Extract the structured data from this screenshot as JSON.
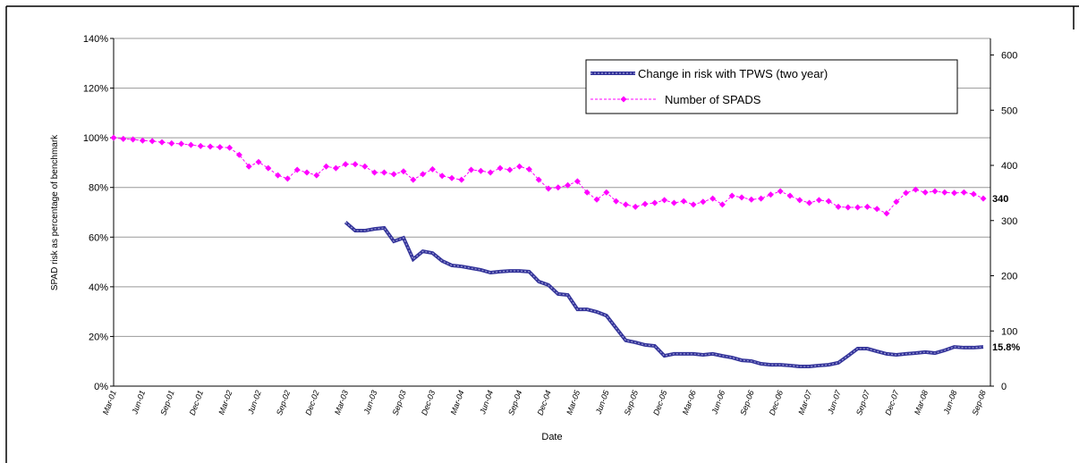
{
  "chart_data": {
    "type": "line",
    "x_label": "Date",
    "y_label": "SPAD risk as percentage of benchmark",
    "categories": [
      "Mar-01",
      null,
      null,
      "Jun-01",
      null,
      null,
      "Sep-01",
      null,
      null,
      "Dec-01",
      null,
      null,
      "Mar-02",
      null,
      null,
      "Jun-02",
      null,
      null,
      "Sep-02",
      null,
      null,
      "Dec-02",
      null,
      null,
      "Mar-03",
      null,
      null,
      "Jun-03",
      null,
      null,
      "Sep-03",
      null,
      null,
      "Dec-03",
      null,
      null,
      "Mar-04",
      null,
      null,
      "Jun-04",
      null,
      null,
      "Sep-04",
      null,
      null,
      "Dec-04",
      null,
      null,
      "Mar-05",
      null,
      null,
      "Jun-05",
      null,
      null,
      "Sep-05",
      null,
      null,
      "Dec-05",
      null,
      null,
      "Mar-06",
      null,
      null,
      "Jun-06",
      null,
      null,
      "Sep-06",
      null,
      null,
      "Dec-06",
      null,
      null,
      "Mar-07",
      null,
      null,
      "Jun-07",
      null,
      null,
      "Sep-07",
      null,
      null,
      "Dec-07",
      null,
      null,
      "Mar-08",
      null,
      null,
      "Jun-08",
      null,
      null,
      "Sep-08"
    ],
    "series": [
      {
        "name": "Change in risk with TPWS (two year)",
        "color": "#333399",
        "axis": "y",
        "values": [
          null,
          null,
          null,
          null,
          null,
          null,
          null,
          null,
          null,
          null,
          null,
          null,
          null,
          null,
          null,
          null,
          null,
          null,
          null,
          null,
          null,
          null,
          null,
          null,
          66,
          62.6,
          62.6,
          63.3,
          63.7,
          58.3,
          59.7,
          51.1,
          54.3,
          53.6,
          50.4,
          48.6,
          48.2,
          47.5,
          46.8,
          45.7,
          46.1,
          46.4,
          46.4,
          46.1,
          42.1,
          40.7,
          37.1,
          36.7,
          30.9,
          30.9,
          29.9,
          28.4,
          23.4,
          18.4,
          17.6,
          16.6,
          16.2,
          12.2,
          13,
          13,
          13,
          12.6,
          13,
          12.2,
          11.5,
          10.4,
          10.1,
          9,
          8.6,
          8.6,
          8.3,
          7.9,
          7.9,
          8.3,
          8.6,
          9.4,
          12.2,
          15.1,
          15.1,
          14,
          13,
          12.6,
          13,
          13.3,
          13.7,
          13.3,
          14.4,
          15.8,
          15.5,
          15.5,
          15.8
        ],
        "value_labels": [
          null,
          null,
          null,
          null,
          null,
          null,
          null,
          null,
          null,
          null,
          null,
          null,
          null,
          null,
          null,
          null,
          null,
          null,
          null,
          null,
          null,
          null,
          null,
          null,
          null,
          null,
          null,
          null,
          null,
          null,
          null,
          null,
          null,
          null,
          null,
          null,
          null,
          null,
          null,
          null,
          null,
          null,
          null,
          null,
          null,
          null,
          null,
          null,
          null,
          null,
          null,
          null,
          null,
          null,
          null,
          null,
          null,
          null,
          null,
          null,
          null,
          null,
          null,
          null,
          null,
          null,
          null,
          null,
          null,
          null,
          null,
          null,
          null,
          null,
          null,
          null,
          null,
          null,
          null,
          null,
          null,
          null,
          null,
          null,
          null,
          null,
          null,
          null,
          null,
          null,
          "15.8%"
        ]
      },
      {
        "name": "Number of SPADS",
        "color": "#ff00ff",
        "axis": "y2",
        "values": [
          450,
          448,
          447,
          445,
          444,
          442,
          440,
          439,
          437,
          435,
          434,
          433,
          432,
          419,
          398,
          406,
          395,
          382,
          376,
          392,
          387,
          382,
          398,
          395,
          402,
          402,
          398,
          387,
          387,
          384,
          389,
          374,
          384,
          393,
          381,
          377,
          374,
          392,
          390,
          387,
          395,
          392,
          398,
          393,
          374,
          358,
          360,
          364,
          371,
          351,
          338,
          351,
          335,
          329,
          325,
          330,
          332,
          337,
          332,
          335,
          329,
          334,
          340,
          329,
          345,
          342,
          338,
          340,
          347,
          353,
          345,
          337,
          332,
          337,
          335,
          325,
          324,
          324,
          325,
          321,
          313,
          334,
          350,
          356,
          351,
          353,
          351,
          350,
          351,
          348,
          340
        ],
        "value_labels": [
          null,
          null,
          null,
          null,
          null,
          null,
          null,
          null,
          null,
          null,
          null,
          null,
          null,
          null,
          null,
          null,
          null,
          null,
          null,
          null,
          null,
          null,
          null,
          null,
          null,
          null,
          null,
          null,
          null,
          null,
          null,
          null,
          null,
          null,
          null,
          null,
          null,
          null,
          null,
          null,
          null,
          null,
          null,
          null,
          null,
          null,
          null,
          null,
          null,
          null,
          null,
          null,
          null,
          null,
          null,
          null,
          null,
          null,
          null,
          null,
          null,
          null,
          null,
          null,
          null,
          null,
          null,
          null,
          null,
          null,
          null,
          null,
          null,
          null,
          null,
          null,
          null,
          null,
          null,
          null,
          null,
          null,
          null,
          null,
          null,
          null,
          null,
          null,
          null,
          null,
          "340"
        ]
      }
    ],
    "ylim": [
      0,
      140
    ],
    "yticks": [
      {
        "value": 0,
        "label": "0%"
      },
      {
        "value": 20,
        "label": "20%"
      },
      {
        "value": 40,
        "label": "40%"
      },
      {
        "value": 60,
        "label": "60%"
      },
      {
        "value": 80,
        "label": "80%"
      },
      {
        "value": 100,
        "label": "100%"
      },
      {
        "value": 120,
        "label": "120%"
      },
      {
        "value": 140,
        "label": "140%"
      }
    ],
    "y2lim": [
      0,
      630
    ],
    "y2ticks": [
      0,
      100,
      200,
      300,
      400,
      500,
      600
    ],
    "grid": true,
    "legend": "upper right"
  }
}
